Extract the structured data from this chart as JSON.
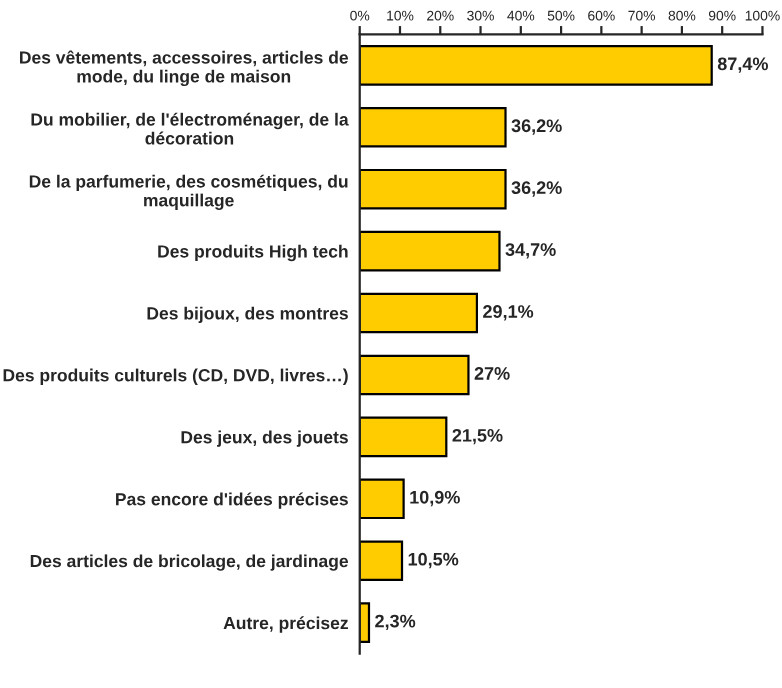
{
  "chart_data": {
    "type": "bar",
    "orientation": "horizontal",
    "categories": [
      "Des vêtements, accessoires, articles de\nmode, du linge de maison",
      "Du mobilier, de l'électroménager, de la\ndécoration",
      "De la parfumerie, des cosmétiques, du\nmaquillage",
      "Des produits High tech",
      "Des bijoux, des montres",
      "Des produits culturels (CD, DVD, livres…)",
      "Des jeux, des jouets",
      "Pas encore d'idées précises",
      "Des articles de bricolage, de jardinage",
      "Autre, précisez"
    ],
    "values": [
      87.4,
      36.2,
      36.2,
      34.7,
      29.1,
      27,
      21.5,
      10.9,
      10.5,
      2.3
    ],
    "value_labels": [
      "87,4%",
      "36,2%",
      "36,2%",
      "34,7%",
      "29,1%",
      "27%",
      "21,5%",
      "10,9%",
      "10,5%",
      "2,3%"
    ],
    "color": "#ffcc00",
    "xlim": [
      0,
      100
    ],
    "xticks": [
      {
        "value": 0,
        "label": "0%"
      },
      {
        "value": 10,
        "label": "10%"
      },
      {
        "value": 20,
        "label": "20%"
      },
      {
        "value": 30,
        "label": "30%"
      },
      {
        "value": 40,
        "label": "40%"
      },
      {
        "value": 50,
        "label": "50%"
      },
      {
        "value": 60,
        "label": "60%"
      },
      {
        "value": 70,
        "label": "70%"
      },
      {
        "value": 80,
        "label": "80%"
      },
      {
        "value": 90,
        "label": "90%"
      },
      {
        "value": 100,
        "label": "100%"
      }
    ],
    "grid": false,
    "legend": false
  }
}
